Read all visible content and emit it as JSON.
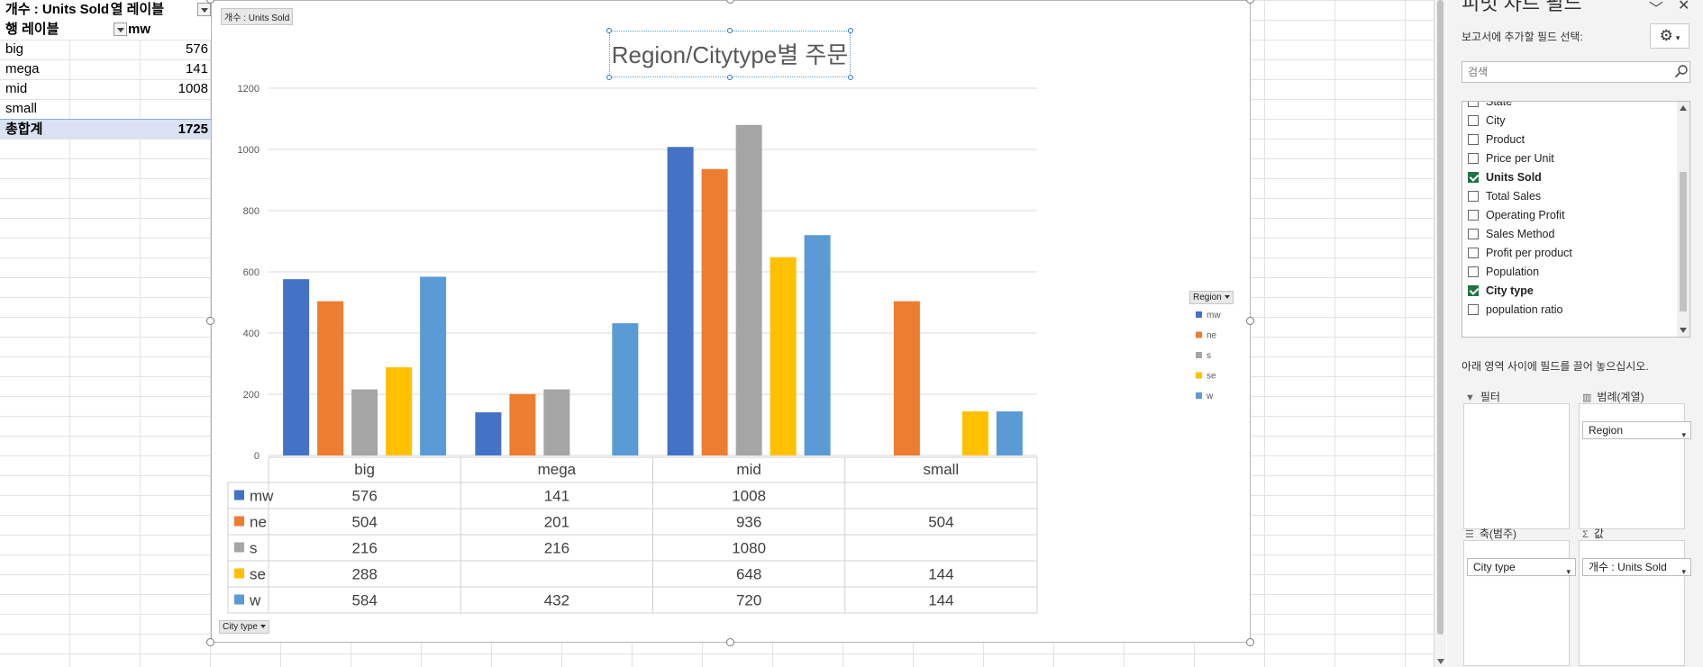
{
  "pivot_table": {
    "header1_left": "개수 : Units Sold",
    "header1_right": "열 레이블",
    "header2_left": "행 레이블",
    "header2_right": "mw",
    "rows": [
      {
        "label": "big",
        "value": "576"
      },
      {
        "label": "mega",
        "value": "141"
      },
      {
        "label": "mid",
        "value": "1008"
      },
      {
        "label": "small",
        "value": ""
      }
    ],
    "total_label": "총합계",
    "total_value": "1725"
  },
  "chart": {
    "value_field_button": "개수 : Units Sold",
    "axis_field_button": "City type",
    "legend_field_button": "Region",
    "title": "Region/Citytype별 주문"
  },
  "chart_data": {
    "type": "bar",
    "title": "Region/Citytype별 주문",
    "categories": [
      "big",
      "mega",
      "mid",
      "small"
    ],
    "yticks": [
      "0",
      "200",
      "400",
      "600",
      "800",
      "1000",
      "1200"
    ],
    "ylim": [
      0,
      1200
    ],
    "legend_title": "Region",
    "legend_position": "right",
    "grid": true,
    "series": [
      {
        "name": "mw",
        "color": "#4472c4",
        "values": [
          576,
          141,
          1008,
          null
        ]
      },
      {
        "name": "ne",
        "color": "#ed7d31",
        "values": [
          504,
          201,
          936,
          504
        ]
      },
      {
        "name": "s",
        "color": "#a5a5a5",
        "values": [
          216,
          216,
          1080,
          null
        ]
      },
      {
        "name": "se",
        "color": "#ffc000",
        "values": [
          288,
          null,
          648,
          144
        ]
      },
      {
        "name": "w",
        "color": "#5b9bd5",
        "values": [
          584,
          432,
          720,
          144
        ]
      }
    ]
  },
  "panel": {
    "title": "피벗 차트 필드",
    "subtitle": "보고서에 추가할 필드 선택:",
    "search_placeholder": "검색",
    "fields": [
      {
        "label": "State",
        "checked": false
      },
      {
        "label": "City",
        "checked": false
      },
      {
        "label": "Product",
        "checked": false
      },
      {
        "label": "Price per Unit",
        "checked": false
      },
      {
        "label": "Units Sold",
        "checked": true
      },
      {
        "label": "Total Sales",
        "checked": false
      },
      {
        "label": "Operating Profit",
        "checked": false
      },
      {
        "label": "Sales Method",
        "checked": false
      },
      {
        "label": "Profit per product",
        "checked": false
      },
      {
        "label": "Population",
        "checked": false
      },
      {
        "label": "City type",
        "checked": true
      },
      {
        "label": "population ratio",
        "checked": false
      }
    ],
    "drag_hint": "아래 영역 사이에 필드를 끌어 놓으십시오.",
    "zones": {
      "filter_label": "필터",
      "legend_label": "범례(계열)",
      "legend_chip": "Region",
      "axis_label": "축(범주)",
      "axis_chip": "City type",
      "values_label": "값",
      "values_chip": "개수 : Units Sold"
    }
  },
  "colors": {
    "total_row_bg": "#d9e1f2",
    "checkbox_checked": "#217346",
    "title_handles": "#2f75b5"
  }
}
